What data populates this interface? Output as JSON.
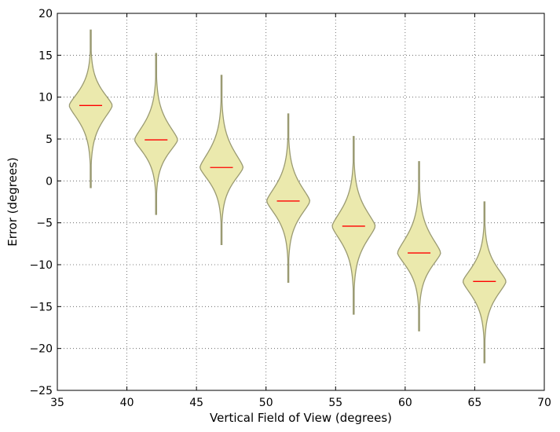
{
  "chart_data": {
    "type": "violin",
    "title": "",
    "xlabel": "Vertical Field of View (degrees)",
    "ylabel": "Error (degrees)",
    "xlim": [
      35,
      70
    ],
    "ylim": [
      -25,
      20
    ],
    "xticks": [
      35,
      40,
      45,
      50,
      55,
      60,
      65,
      70
    ],
    "yticks": [
      -25,
      -20,
      -15,
      -10,
      -5,
      0,
      5,
      10,
      15,
      20
    ],
    "xtick_labels": [
      "35",
      "40",
      "45",
      "50",
      "55",
      "60",
      "65",
      "70"
    ],
    "ytick_labels": [
      "−25",
      "−20",
      "−15",
      "−10",
      "−5",
      "0",
      "5",
      "10",
      "15",
      "20"
    ],
    "grid": true,
    "grid_style": "dotted",
    "colors": {
      "violin_fill": "#ebe9ad",
      "violin_edge": "#9a9a72",
      "median": "#ff0000",
      "grid": "#555555",
      "axis": "#000000"
    },
    "violins": [
      {
        "x": 37.4,
        "median": 9.0,
        "min": -0.8,
        "max": 18.0
      },
      {
        "x": 42.1,
        "median": 4.9,
        "min": -4.0,
        "max": 15.2
      },
      {
        "x": 46.8,
        "median": 1.6,
        "min": -7.6,
        "max": 12.6
      },
      {
        "x": 51.6,
        "median": -2.4,
        "min": -12.1,
        "max": 8.0
      },
      {
        "x": 56.3,
        "median": -5.4,
        "min": -15.9,
        "max": 5.3
      },
      {
        "x": 61.0,
        "median": -8.6,
        "min": -17.9,
        "max": 2.3
      },
      {
        "x": 65.7,
        "median": -12.0,
        "min": -21.7,
        "max": -2.5
      }
    ]
  }
}
